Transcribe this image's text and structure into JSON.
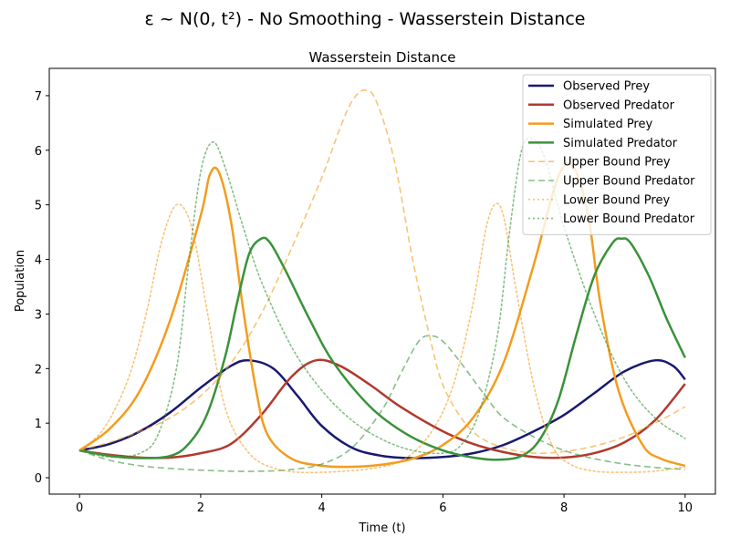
{
  "suptitle": "ε ~ N(0, t²) - No Smoothing - Wasserstein Distance",
  "chart_data": {
    "type": "line",
    "title": "Wasserstein Distance",
    "xlabel": "Time (t)",
    "ylabel": "Population",
    "xlim": [
      -0.5,
      10.5
    ],
    "ylim": [
      -0.3,
      7.5
    ],
    "xticks": [
      0,
      2,
      4,
      6,
      8,
      10
    ],
    "yticks": [
      0,
      1,
      2,
      3,
      4,
      5,
      6,
      7
    ],
    "grid": false,
    "legend_position": "top-right",
    "series": [
      {
        "name": "Observed Prey",
        "color": "#191970",
        "style": "solid",
        "width": 2.5,
        "x": [
          0,
          0.5,
          1,
          1.5,
          2,
          2.5,
          2.8,
          3.2,
          3.6,
          4,
          4.5,
          5,
          5.5,
          6,
          6.5,
          7,
          7.5,
          8,
          8.5,
          9,
          9.5,
          9.8,
          10
        ],
        "y": [
          0.5,
          0.62,
          0.85,
          1.2,
          1.65,
          2.05,
          2.15,
          2.0,
          1.5,
          0.95,
          0.55,
          0.4,
          0.36,
          0.38,
          0.45,
          0.6,
          0.85,
          1.15,
          1.55,
          1.95,
          2.15,
          2.05,
          1.8
        ]
      },
      {
        "name": "Observed Predator",
        "color": "#b03a2e",
        "style": "solid",
        "width": 2.5,
        "x": [
          0,
          0.5,
          1,
          1.5,
          2,
          2.5,
          3,
          3.5,
          3.9,
          4.3,
          4.8,
          5.3,
          6,
          6.5,
          7,
          7.5,
          8,
          8.5,
          9,
          9.5,
          10
        ],
        "y": [
          0.5,
          0.42,
          0.37,
          0.37,
          0.45,
          0.62,
          1.15,
          1.85,
          2.15,
          2.05,
          1.7,
          1.3,
          0.85,
          0.62,
          0.47,
          0.38,
          0.37,
          0.45,
          0.65,
          1.05,
          1.72
        ]
      },
      {
        "name": "Simulated Prey",
        "color": "#f39c1f",
        "style": "solid",
        "width": 2.5,
        "x": [
          0,
          0.5,
          1,
          1.5,
          2,
          2.15,
          2.3,
          2.5,
          2.7,
          2.9,
          3.1,
          3.5,
          4,
          4.5,
          5,
          5.5,
          6,
          6.5,
          7,
          7.5,
          7.9,
          8.15,
          8.4,
          8.6,
          8.9,
          9.3,
          9.6,
          10
        ],
        "y": [
          0.5,
          0.9,
          1.6,
          2.9,
          4.8,
          5.55,
          5.6,
          4.7,
          3.1,
          1.7,
          0.8,
          0.35,
          0.22,
          0.2,
          0.24,
          0.35,
          0.6,
          1.1,
          2.1,
          3.9,
          5.5,
          5.7,
          4.8,
          3.2,
          1.6,
          0.6,
          0.35,
          0.22
        ]
      },
      {
        "name": "Simulated Predator",
        "color": "#3a923a",
        "style": "solid",
        "width": 2.5,
        "x": [
          0,
          0.5,
          1,
          1.5,
          1.8,
          2.1,
          2.4,
          2.6,
          2.8,
          3.0,
          3.15,
          3.4,
          3.8,
          4.2,
          4.8,
          5.4,
          6,
          6.5,
          6.9,
          7.3,
          7.6,
          7.9,
          8.2,
          8.5,
          8.8,
          8.95,
          9.1,
          9.4,
          9.7,
          10
        ],
        "y": [
          0.5,
          0.4,
          0.36,
          0.4,
          0.62,
          1.15,
          2.2,
          3.2,
          4.1,
          4.38,
          4.3,
          3.8,
          2.9,
          2.1,
          1.3,
          0.8,
          0.5,
          0.37,
          0.33,
          0.4,
          0.7,
          1.4,
          2.6,
          3.7,
          4.3,
          4.38,
          4.3,
          3.7,
          2.9,
          2.2
        ]
      },
      {
        "name": "Upper Bound Prey",
        "color": "#f39c1f",
        "style": "dashed",
        "width": 1.6,
        "opacity": 0.6,
        "x": [
          0,
          0.5,
          1,
          1.5,
          2,
          2.5,
          3,
          3.5,
          4,
          4.3,
          4.5,
          4.7,
          4.9,
          5.2,
          5.5,
          5.8,
          6,
          6.3,
          6.6,
          7,
          7.5,
          8,
          8.5,
          9,
          9.5,
          10
        ],
        "y": [
          0.5,
          0.65,
          0.85,
          1.1,
          1.5,
          2.1,
          3.0,
          4.2,
          5.5,
          6.4,
          6.9,
          7.1,
          6.9,
          5.8,
          4.0,
          2.5,
          1.7,
          1.1,
          0.75,
          0.55,
          0.45,
          0.48,
          0.58,
          0.75,
          1.0,
          1.3
        ]
      },
      {
        "name": "Upper Bound Predator",
        "color": "#3a923a",
        "style": "dashed",
        "width": 1.6,
        "opacity": 0.6,
        "x": [
          0,
          0.5,
          1,
          1.5,
          2,
          2.5,
          3,
          3.5,
          4,
          4.5,
          5,
          5.3,
          5.6,
          5.8,
          6,
          6.3,
          6.7,
          7,
          7.5,
          8,
          8.5,
          9,
          9.5,
          10
        ],
        "y": [
          0.5,
          0.32,
          0.22,
          0.17,
          0.14,
          0.12,
          0.12,
          0.15,
          0.25,
          0.55,
          1.25,
          1.9,
          2.5,
          2.6,
          2.5,
          2.1,
          1.5,
          1.1,
          0.75,
          0.5,
          0.35,
          0.25,
          0.19,
          0.15
        ]
      },
      {
        "name": "Lower Bound Prey",
        "color": "#f39c1f",
        "style": "dotted",
        "width": 1.6,
        "opacity": 0.6,
        "x": [
          0,
          0.4,
          0.8,
          1.1,
          1.35,
          1.6,
          1.85,
          2.1,
          2.4,
          2.8,
          3.3,
          4,
          5,
          5.5,
          5.9,
          6.2,
          6.5,
          6.7,
          6.85,
          7.0,
          7.2,
          7.5,
          7.8,
          8.1,
          8.5,
          9,
          9.5,
          10
        ],
        "y": [
          0.5,
          0.9,
          1.8,
          3.0,
          4.3,
          5.0,
          4.6,
          3.1,
          1.3,
          0.45,
          0.15,
          0.1,
          0.2,
          0.45,
          1.0,
          1.8,
          3.2,
          4.5,
          5.0,
          4.8,
          3.5,
          1.7,
          0.6,
          0.25,
          0.12,
          0.1,
          0.12,
          0.2
        ]
      },
      {
        "name": "Lower Bound Predator",
        "color": "#3a923a",
        "style": "dotted",
        "width": 1.6,
        "opacity": 0.6,
        "x": [
          0,
          0.5,
          1,
          1.3,
          1.6,
          1.8,
          2.0,
          2.2,
          2.4,
          2.7,
          3.0,
          3.5,
          4,
          4.5,
          5,
          5.5,
          6,
          6.3,
          6.6,
          6.9,
          7.1,
          7.3,
          7.5,
          7.7,
          8,
          8.5,
          9,
          9.5,
          10
        ],
        "y": [
          0.5,
          0.38,
          0.45,
          0.8,
          2.0,
          3.9,
          5.6,
          6.15,
          5.7,
          4.6,
          3.6,
          2.4,
          1.6,
          1.05,
          0.7,
          0.5,
          0.45,
          0.6,
          1.2,
          2.6,
          4.5,
          6.0,
          6.2,
          5.8,
          4.6,
          3.0,
          1.8,
          1.1,
          0.72
        ]
      }
    ]
  }
}
